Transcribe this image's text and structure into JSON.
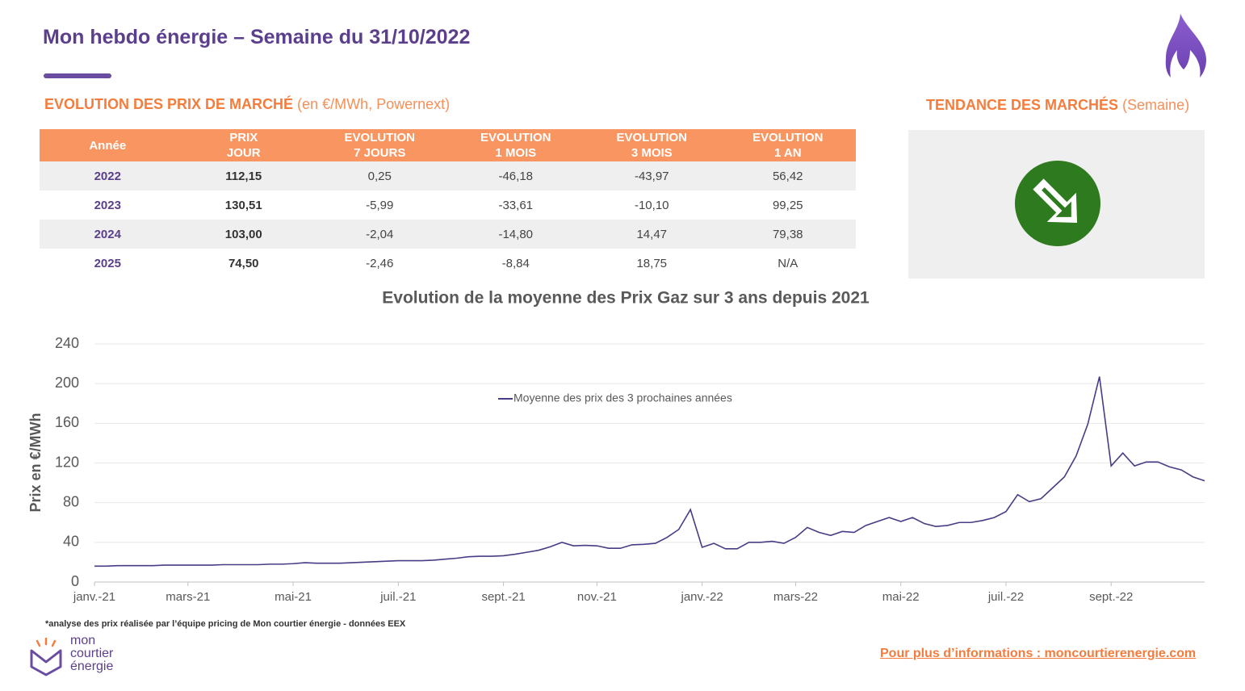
{
  "header": {
    "title": "Mon hebdo énergie – Semaine du 31/10/2022"
  },
  "market_section": {
    "title": "EVOLUTION DES PRIX DE MARCHÉ",
    "subtitle": "(en €/MWh, Powernext)"
  },
  "market_table": {
    "headers": [
      [
        "Année"
      ],
      [
        "PRIX",
        "JOUR"
      ],
      [
        "EVOLUTION",
        "7 JOURS"
      ],
      [
        "EVOLUTION",
        "1 MOIS"
      ],
      [
        "EVOLUTION",
        "3 MOIS"
      ],
      [
        "EVOLUTION",
        "1 AN"
      ]
    ],
    "rows": [
      [
        "2022",
        "112,15",
        "0,25",
        "-46,18",
        "-43,97",
        "56,42"
      ],
      [
        "2023",
        "130,51",
        "-5,99",
        "-33,61",
        "-10,10",
        "99,25"
      ],
      [
        "2024",
        "103,00",
        "-2,04",
        "-14,80",
        "14,47",
        "79,38"
      ],
      [
        "2025",
        "74,50",
        "-2,46",
        "-8,84",
        "18,75",
        "N/A"
      ]
    ]
  },
  "trend_section": {
    "title": "TENDANCE DES MARCHÉS",
    "subtitle": "(Semaine)"
  },
  "chart_data": {
    "type": "line",
    "title": "Evolution de la moyenne des Prix Gaz sur 3 ans depuis 2021",
    "y_label": "Prix en €/MWh",
    "categories": [
      "janv.-21",
      null,
      null,
      null,
      null,
      null,
      null,
      null,
      "mars-21",
      null,
      null,
      null,
      null,
      null,
      null,
      null,
      null,
      "mai-21",
      null,
      null,
      null,
      null,
      null,
      null,
      null,
      null,
      "juil.-21",
      null,
      null,
      null,
      null,
      null,
      null,
      null,
      null,
      "sept.-21",
      null,
      null,
      null,
      null,
      null,
      null,
      null,
      "nov.-21",
      null,
      null,
      null,
      null,
      null,
      null,
      null,
      null,
      "janv.-22",
      null,
      null,
      null,
      null,
      null,
      null,
      null,
      "mars-22",
      null,
      null,
      null,
      null,
      null,
      null,
      null,
      null,
      "mai-22",
      null,
      null,
      null,
      null,
      null,
      null,
      null,
      null,
      "juil.-22",
      null,
      null,
      null,
      null,
      null,
      null,
      null,
      null,
      "sept.-22",
      null,
      null,
      null,
      null,
      null,
      null,
      null,
      null
    ],
    "series": [
      {
        "name": "Moyenne des prix des 3 prochaines années",
        "color": "#4a3b85",
        "values": [
          16,
          16,
          16.5,
          16.5,
          16.5,
          16.5,
          17,
          17,
          17,
          17,
          17,
          17.5,
          17.5,
          17.5,
          17.5,
          18,
          18,
          18.5,
          19.5,
          19,
          19,
          19,
          19.5,
          20,
          20.5,
          21,
          21.5,
          21.5,
          21.5,
          22,
          23,
          24,
          25.5,
          26,
          26,
          26.5,
          28,
          30,
          32,
          35.5,
          40,
          36.5,
          37,
          36.5,
          34,
          34,
          37.5,
          38,
          39,
          45,
          53,
          73,
          35,
          39,
          33.5,
          33.5,
          40,
          40,
          41,
          39,
          45,
          55,
          50,
          47,
          51,
          50,
          57,
          61,
          65,
          61,
          65,
          59,
          56,
          57,
          60,
          60,
          62,
          65,
          71,
          88,
          81,
          84,
          95,
          106,
          127,
          159,
          207,
          117,
          130,
          117,
          121,
          121,
          116,
          113,
          106,
          102
        ]
      }
    ],
    "ylim": [
      0,
      240
    ],
    "yticks": [
      0,
      40,
      80,
      120,
      160,
      200,
      240
    ],
    "grid": true
  },
  "footnote": "*analyse des prix réalisée par l’équipe pricing de Mon courtier énergie -  données EEX",
  "logo": {
    "lines": [
      "mon",
      "courtier",
      "énergie"
    ]
  },
  "link": "Pour plus d’informations : moncourtierenergie.com"
}
